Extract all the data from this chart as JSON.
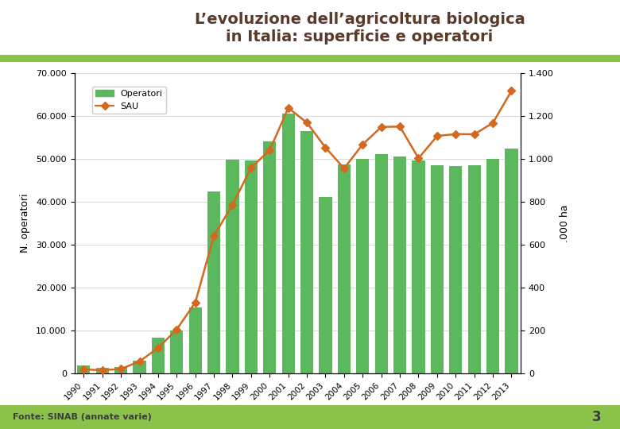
{
  "years": [
    "1990",
    "1991",
    "1992",
    "1993",
    "1994",
    "1995",
    "1996",
    "1997",
    "1998",
    "1999",
    "2000",
    "2001",
    "2002",
    "2003",
    "2004",
    "2005",
    "2006",
    "2007",
    "2008",
    "2009",
    "2010",
    "2011",
    "2012",
    "2013"
  ],
  "operatori": [
    1796,
    1330,
    1450,
    2950,
    8327,
    9996,
    15365,
    42427,
    49686,
    49641,
    54118,
    60440,
    56440,
    41100,
    48744,
    50019,
    51102,
    50528,
    49514,
    48510,
    48369,
    48508,
    50000,
    52383
  ],
  "sau": [
    18,
    14,
    20,
    55,
    118,
    204,
    330,
    641,
    785,
    958,
    1040,
    1237,
    1168,
    1052,
    955,
    1067,
    1148,
    1150,
    1002,
    1106,
    1115,
    1114,
    1167,
    1317
  ],
  "bar_color": "#5cb85c",
  "line_color": "#d2691e",
  "marker_color": "#d2691e",
  "ylabel_left": "N. operatori",
  "ylabel_right": ".000 ha",
  "ylim_left": [
    0,
    70000
  ],
  "ylim_right": [
    0,
    1400
  ],
  "yticks_left": [
    0,
    10000,
    20000,
    30000,
    40000,
    50000,
    60000,
    70000
  ],
  "ytick_labels_left": [
    "0",
    "10.000",
    "20.000",
    "30.000",
    "40.000",
    "50.000",
    "60.000",
    "70.000"
  ],
  "yticks_right": [
    0,
    200,
    400,
    600,
    800,
    1000,
    1200,
    1400
  ],
  "ytick_labels_right": [
    "0",
    "200",
    "400",
    "600",
    "800",
    "1.000",
    "1.200",
    "1.400"
  ],
  "legend_operatori": "Operatori",
  "legend_sau": "SAU",
  "background_color": "#ffffff",
  "header_bar_color": "#8bc34a",
  "footer_bar_color": "#8bc34a",
  "fonte_text": "Fonte: SINAB (annate varie)",
  "page_number": "3",
  "title_line1": "L’evoluzione dell’agricoltura biologica",
  "title_line2": "in Italia: superficie e operatori"
}
